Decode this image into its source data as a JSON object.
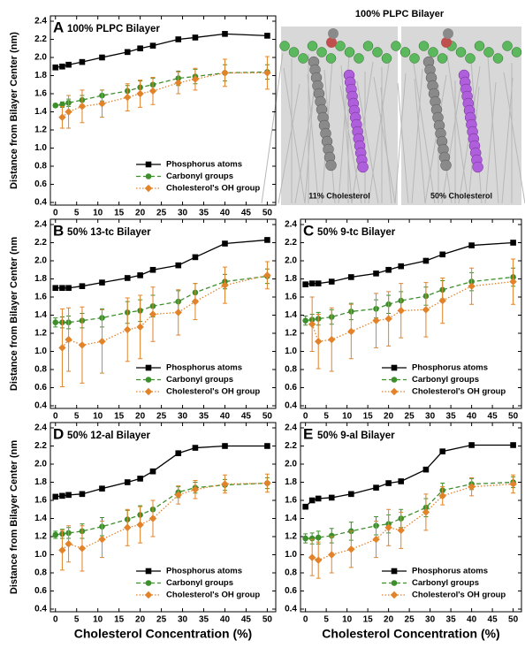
{
  "image": {
    "title": "100% PLPC Bilayer",
    "labels": [
      "11% Cholesterol",
      "50% Cholesterol"
    ]
  },
  "chart_data": [
    {
      "type": "line",
      "letter": "A",
      "title": "100% PLPC Bilayer",
      "ylabel": "Distance from Bilayer Center (nm)",
      "x": [
        0,
        1.6,
        3.1,
        6.3,
        11,
        17,
        20,
        23,
        29,
        33,
        40,
        50
      ],
      "xlim": [
        -1.2,
        52
      ],
      "xticks": [
        0,
        5,
        10,
        15,
        20,
        25,
        30,
        35,
        40,
        45,
        50
      ],
      "ylim": [
        0.4,
        2.4
      ],
      "yticks": [
        0.4,
        0.6,
        0.8,
        {
          "value": 1,
          "label": "1.0"
        },
        1.2,
        1.4,
        1.6,
        1.8,
        {
          "value": 2,
          "label": "2.0"
        },
        2.2,
        2.4
      ],
      "legend": "lower right",
      "series": [
        {
          "name": "Phosphorus atoms",
          "color": "#000000",
          "marker": "square",
          "linestyle": "solid",
          "values": [
            1.89,
            1.9,
            1.92,
            1.95,
            2.0,
            2.06,
            2.1,
            2.13,
            2.2,
            2.22,
            2.26,
            2.24
          ]
        },
        {
          "name": "Carbonyl groups",
          "color": "#3d8f2c",
          "marker": "circle",
          "linestyle": "dashed",
          "values": [
            1.47,
            1.48,
            1.5,
            1.53,
            1.58,
            1.63,
            1.67,
            1.7,
            1.77,
            1.79,
            1.83,
            1.84
          ],
          "errors": [
            0.02,
            0.03,
            0.04,
            0.05,
            0.06,
            0.06,
            0.07,
            0.07,
            0.08,
            0.08,
            0.09,
            0.08
          ]
        },
        {
          "name": "Cholesterol's OH group",
          "color": "#e2832a",
          "marker": "diamond",
          "linestyle": "dotted",
          "values": [
            null,
            1.34,
            1.4,
            1.46,
            1.49,
            1.56,
            1.6,
            1.63,
            1.72,
            1.76,
            1.83,
            1.83
          ],
          "errors": [
            null,
            0.12,
            0.18,
            0.18,
            0.15,
            0.15,
            0.15,
            0.15,
            0.12,
            0.12,
            0.15,
            0.18
          ]
        }
      ]
    },
    {
      "type": "line",
      "letter": "B",
      "title": "50% 13-tc Bilayer",
      "ylabel": "Distance from Bilayer Center (nm",
      "x": [
        0,
        1.6,
        3.1,
        6.3,
        11,
        17,
        20,
        23,
        29,
        33,
        40,
        50
      ],
      "xlim": [
        -1.2,
        52
      ],
      "xticks": [
        0,
        5,
        10,
        15,
        20,
        25,
        30,
        35,
        40,
        45,
        50
      ],
      "ylim": [
        0.4,
        2.4
      ],
      "yticks": [
        0.4,
        0.6,
        0.8,
        {
          "value": 1,
          "label": "1.0"
        },
        1.2,
        1.4,
        1.6,
        1.8,
        {
          "value": 2,
          "label": "2.0"
        },
        2.2,
        2.4
      ],
      "legend": "lower right",
      "series": [
        {
          "name": "Phosphorus atoms",
          "color": "#000000",
          "marker": "square",
          "linestyle": "solid",
          "values": [
            1.7,
            1.7,
            1.7,
            1.72,
            1.76,
            1.81,
            1.84,
            1.9,
            1.95,
            2.04,
            2.19,
            2.23
          ]
        },
        {
          "name": "Carbonyl groups",
          "color": "#3d8f2c",
          "marker": "circle",
          "linestyle": "dashed",
          "values": [
            1.32,
            1.32,
            1.32,
            1.34,
            1.37,
            1.43,
            1.45,
            1.5,
            1.55,
            1.65,
            1.77,
            1.83
          ],
          "errors": [
            0.05,
            0.06,
            0.07,
            0.08,
            0.1,
            0.12,
            0.12,
            0.12,
            0.12,
            0.1,
            0.08,
            0.08
          ]
        },
        {
          "name": "Cholesterol's OH group",
          "color": "#e2832a",
          "marker": "diamond",
          "linestyle": "dotted",
          "values": [
            null,
            1.04,
            1.13,
            1.07,
            1.11,
            1.24,
            1.27,
            1.41,
            1.43,
            1.55,
            1.73,
            1.84
          ],
          "errors": [
            null,
            0.43,
            0.35,
            0.42,
            0.35,
            0.35,
            0.35,
            0.3,
            0.25,
            0.2,
            0.2,
            0.15
          ]
        }
      ]
    },
    {
      "type": "line",
      "letter": "C",
      "title": "50% 9-tc Bilayer",
      "x": [
        0,
        1.6,
        3.1,
        6.3,
        11,
        17,
        20,
        23,
        29,
        33,
        40,
        50
      ],
      "xlim": [
        -1.2,
        52
      ],
      "xticks": [
        0,
        5,
        10,
        15,
        20,
        25,
        30,
        35,
        40,
        45,
        50
      ],
      "ylim": [
        0.4,
        2.4
      ],
      "yticks": [
        0.4,
        0.6,
        0.8,
        {
          "value": 1,
          "label": "1.0"
        },
        1.2,
        1.4,
        1.6,
        1.8,
        {
          "value": 2,
          "label": "2.0"
        },
        2.2,
        2.4
      ],
      "legend": "lower right",
      "series": [
        {
          "name": "Phosphorus atoms",
          "color": "#000000",
          "marker": "square",
          "linestyle": "solid",
          "values": [
            1.74,
            1.75,
            1.75,
            1.77,
            1.82,
            1.86,
            1.9,
            1.94,
            2.0,
            2.07,
            2.17,
            2.2
          ]
        },
        {
          "name": "Carbonyl groups",
          "color": "#3d8f2c",
          "marker": "circle",
          "linestyle": "dashed",
          "values": [
            1.34,
            1.35,
            1.36,
            1.38,
            1.44,
            1.47,
            1.52,
            1.56,
            1.61,
            1.68,
            1.77,
            1.82
          ],
          "errors": [
            0.05,
            0.06,
            0.07,
            0.08,
            0.09,
            0.1,
            0.1,
            0.1,
            0.1,
            0.1,
            0.1,
            0.1
          ]
        },
        {
          "name": "Cholesterol's OH group",
          "color": "#e2832a",
          "marker": "diamond",
          "linestyle": "dotted",
          "values": [
            null,
            1.3,
            1.11,
            1.13,
            1.22,
            1.34,
            1.36,
            1.45,
            1.46,
            1.56,
            1.72,
            1.77
          ],
          "errors": [
            null,
            0.3,
            0.3,
            0.35,
            0.3,
            0.3,
            0.3,
            0.3,
            0.3,
            0.25,
            0.2,
            0.25
          ]
        }
      ]
    },
    {
      "type": "line",
      "letter": "D",
      "title": "50% 12-al Bilayer",
      "ylabel": "Distance from Bilayer Center (nm",
      "xlabel": "Cholesterol Concentration (%)",
      "x": [
        0,
        1.6,
        3.1,
        6.3,
        11,
        17,
        20,
        23,
        29,
        33,
        40,
        50
      ],
      "xlim": [
        -1.2,
        52
      ],
      "xticks": [
        0,
        5,
        10,
        15,
        20,
        25,
        30,
        35,
        40,
        45,
        50
      ],
      "ylim": [
        0.4,
        2.4
      ],
      "yticks": [
        0.4,
        0.6,
        0.8,
        {
          "value": 1,
          "label": "1.0"
        },
        1.2,
        1.4,
        1.6,
        1.8,
        {
          "value": 2,
          "label": "2.0"
        },
        2.2,
        2.4
      ],
      "legend": "lower right",
      "series": [
        {
          "name": "Phosphorus atoms",
          "color": "#000000",
          "marker": "square",
          "linestyle": "solid",
          "values": [
            1.64,
            1.65,
            1.66,
            1.67,
            1.73,
            1.8,
            1.84,
            1.92,
            2.12,
            2.18,
            2.2,
            2.2
          ]
        },
        {
          "name": "Carbonyl groups",
          "color": "#3d8f2c",
          "marker": "circle",
          "linestyle": "dashed",
          "values": [
            1.22,
            1.23,
            1.24,
            1.26,
            1.31,
            1.39,
            1.44,
            1.5,
            1.69,
            1.74,
            1.77,
            1.79
          ],
          "errors": [
            0.04,
            0.05,
            0.06,
            0.08,
            0.1,
            0.1,
            0.1,
            0.1,
            0.06,
            0.06,
            0.06,
            0.06
          ]
        },
        {
          "name": "Cholesterol's OH group",
          "color": "#e2832a",
          "marker": "diamond",
          "linestyle": "dotted",
          "values": [
            null,
            1.05,
            1.12,
            1.07,
            1.17,
            1.3,
            1.33,
            1.4,
            1.66,
            1.72,
            1.78,
            1.79
          ],
          "errors": [
            null,
            0.22,
            0.2,
            0.25,
            0.2,
            0.2,
            0.2,
            0.2,
            0.1,
            0.1,
            0.1,
            0.1
          ]
        }
      ]
    },
    {
      "type": "line",
      "letter": "E",
      "title": "50% 9-al Bilayer",
      "xlabel": "Cholesterol Concentration (%)",
      "x": [
        0,
        1.6,
        3.1,
        6.3,
        11,
        17,
        20,
        23,
        29,
        33,
        40,
        50
      ],
      "xlim": [
        -1.2,
        52
      ],
      "xticks": [
        0,
        5,
        10,
        15,
        20,
        25,
        30,
        35,
        40,
        45,
        50
      ],
      "ylim": [
        0.4,
        2.4
      ],
      "yticks": [
        0.4,
        0.6,
        0.8,
        {
          "value": 1,
          "label": "1.0"
        },
        1.2,
        1.4,
        1.6,
        1.8,
        {
          "value": 2,
          "label": "2.0"
        },
        2.2,
        2.4
      ],
      "legend": "lower right",
      "series": [
        {
          "name": "Phosphorus atoms",
          "color": "#000000",
          "marker": "square",
          "linestyle": "solid",
          "values": [
            1.53,
            1.6,
            1.62,
            1.63,
            1.67,
            1.74,
            1.79,
            1.81,
            1.94,
            2.14,
            2.21,
            2.21
          ]
        },
        {
          "name": "Carbonyl groups",
          "color": "#3d8f2c",
          "marker": "circle",
          "linestyle": "dashed",
          "values": [
            1.18,
            1.18,
            1.19,
            1.21,
            1.26,
            1.32,
            1.34,
            1.4,
            1.52,
            1.71,
            1.78,
            1.8
          ],
          "errors": [
            0.05,
            0.06,
            0.07,
            0.08,
            0.1,
            0.1,
            0.1,
            0.1,
            0.1,
            0.08,
            0.06,
            0.06
          ]
        },
        {
          "name": "Cholesterol's OH group",
          "color": "#e2832a",
          "marker": "diamond",
          "linestyle": "dotted",
          "values": [
            null,
            0.97,
            0.94,
            1.0,
            1.06,
            1.17,
            1.3,
            1.27,
            1.47,
            1.65,
            1.75,
            1.78
          ],
          "errors": [
            null,
            0.2,
            0.2,
            0.2,
            0.2,
            0.2,
            0.2,
            0.2,
            0.2,
            0.1,
            0.1,
            0.1
          ]
        }
      ]
    }
  ]
}
